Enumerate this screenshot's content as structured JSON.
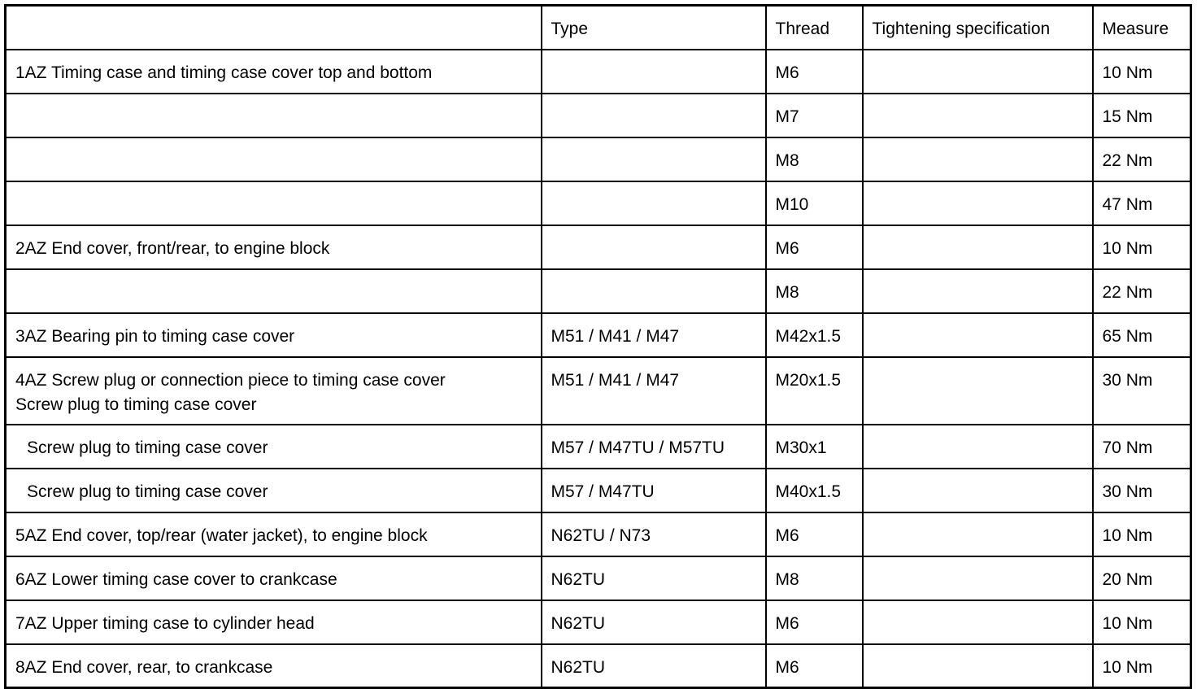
{
  "headers": [
    "",
    "Type",
    "Thread",
    "Tightening specification",
    "Measure"
  ],
  "rows": [
    {
      "desc": [
        "1AZ  Timing case and timing case cover top and bottom"
      ],
      "type": "",
      "thread": "M6",
      "spec": "",
      "measure": "10 Nm"
    },
    {
      "desc": [
        ""
      ],
      "type": "",
      "thread": "M7",
      "spec": "",
      "measure": "15 Nm"
    },
    {
      "desc": [
        ""
      ],
      "type": "",
      "thread": "M8",
      "spec": "",
      "measure": "22 Nm"
    },
    {
      "desc": [
        ""
      ],
      "type": "",
      "thread": "M10",
      "spec": "",
      "measure": "47 Nm"
    },
    {
      "desc": [
        "2AZ  End cover, front/rear, to engine block"
      ],
      "type": "",
      "thread": "M6",
      "spec": "",
      "measure": "10 Nm"
    },
    {
      "desc": [
        ""
      ],
      "type": "",
      "thread": "M8",
      "spec": "",
      "measure": "22 Nm"
    },
    {
      "desc": [
        "3AZ  Bearing pin to timing case cover"
      ],
      "type": "M51 / M41 / M47",
      "thread": "M42x1.5",
      "spec": "",
      "measure": "65 Nm"
    },
    {
      "desc": [
        "4AZ  Screw plug or connection piece to timing case cover",
        "Screw plug to timing case cover"
      ],
      "type": "M51 / M41 / M47",
      "thread": "M20x1.5",
      "spec": "",
      "measure": "30 Nm"
    },
    {
      "desc": [
        "Screw plug to timing case cover"
      ],
      "indent": true,
      "type": "M57 / M47TU / M57TU",
      "thread": "M30x1",
      "spec": "",
      "measure": "70 Nm"
    },
    {
      "desc": [
        "Screw plug to timing case cover"
      ],
      "indent": true,
      "type": "M57 / M47TU",
      "thread": "M40x1.5",
      "spec": "",
      "measure": "30 Nm"
    },
    {
      "desc": [
        "5AZ  End cover, top/rear (water jacket), to engine block"
      ],
      "type": "N62TU / N73",
      "thread": "M6",
      "spec": "",
      "measure": "10 Nm"
    },
    {
      "desc": [
        "6AZ  Lower timing case cover to crankcase"
      ],
      "type": "N62TU",
      "thread": "M8",
      "spec": "",
      "measure": "20 Nm"
    },
    {
      "desc": [
        "7AZ  Upper timing case to cylinder head"
      ],
      "type": "N62TU",
      "thread": "M6",
      "spec": "",
      "measure": "10 Nm"
    },
    {
      "desc": [
        "8AZ  End cover, rear, to crankcase"
      ],
      "type": "N62TU",
      "thread": "M6",
      "spec": "",
      "measure": "10 Nm"
    }
  ]
}
